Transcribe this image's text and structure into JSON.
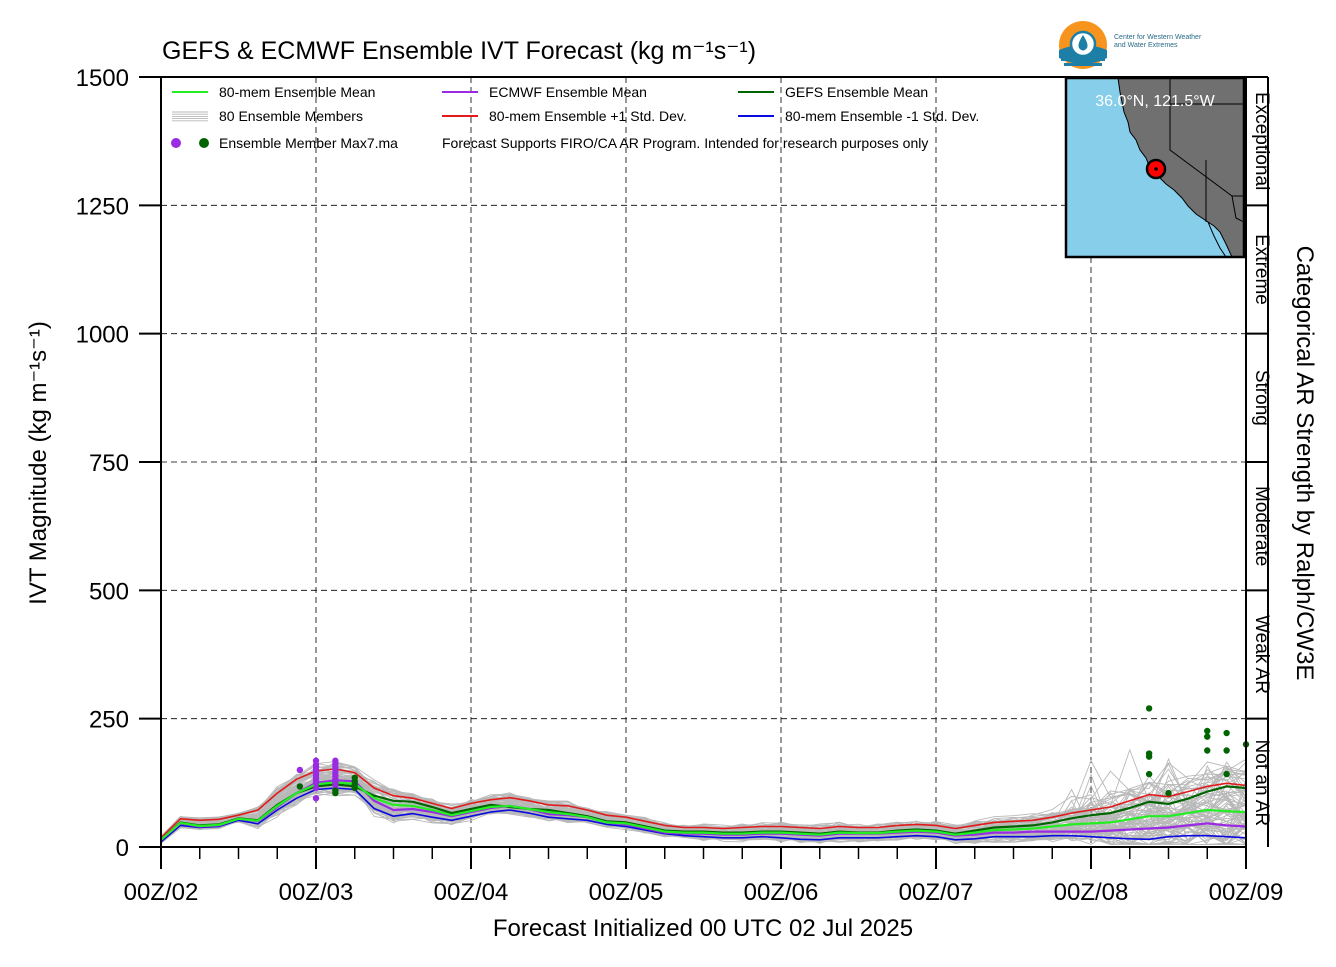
{
  "logo": {
    "line1": "Center for Western Weather",
    "line2": "and Water Extremes"
  },
  "colors": {
    "ensemble_mean": "#22ee22",
    "ecmwf_mean": "#9a2be2",
    "gefs_mean": "#006400",
    "plus_std": "#e11b1b",
    "minus_std": "#0a0ae0",
    "members": "#b8b8b8",
    "map_ocean": "#87ceeb",
    "map_land": "#707070",
    "marker": "#ff0000"
  },
  "legend": {
    "items": [
      {
        "label": "80-mem Ensemble Mean",
        "color": "#22ee22",
        "type": "line"
      },
      {
        "label": "ECMWF Ensemble Mean",
        "color": "#9a2be2",
        "type": "line"
      },
      {
        "label": "GEFS Ensemble Mean",
        "color": "#006400",
        "type": "line"
      },
      {
        "label": "80 Ensemble Members",
        "color": "#b8b8b8",
        "type": "members"
      },
      {
        "label": "80-mem Ensemble +1 Std. Dev.",
        "color": "#e11b1b",
        "type": "line"
      },
      {
        "label": "80-mem Ensemble -1 Std. Dev.",
        "color": "#0a0ae0",
        "type": "line"
      },
      {
        "label": "Ensemble Member Max7.ma",
        "color": "#9a2be2",
        "type": "dots"
      }
    ],
    "note": "Forecast Supports FIRO/CA AR Program. Intended for research purposes only"
  },
  "inset_map": {
    "location_label": "36.0°N, 121.5°W"
  },
  "chart_data": {
    "type": "line",
    "title": "GEFS & ECMWF Ensemble IVT Forecast (kg m⁻¹s⁻¹)",
    "xlabel": "Forecast Initialized 00 UTC 02 Jul 2025",
    "ylabel": "IVT Magnitude (kg m⁻¹s⁻¹)",
    "right_label": "Categorical AR Strength by Ralph/CW3E",
    "ylim": [
      0,
      1500
    ],
    "xlim": [
      0,
      168
    ],
    "x_unit": "forecast hour",
    "yticks": [
      0,
      250,
      500,
      750,
      1000,
      1250,
      1500
    ],
    "xticks": [
      {
        "x": 0,
        "label": "00Z/02"
      },
      {
        "x": 24,
        "label": "00Z/03"
      },
      {
        "x": 48,
        "label": "00Z/04"
      },
      {
        "x": 72,
        "label": "00Z/05"
      },
      {
        "x": 96,
        "label": "00Z/06"
      },
      {
        "x": 120,
        "label": "00Z/07"
      },
      {
        "x": 144,
        "label": "00Z/08"
      },
      {
        "x": 168,
        "label": "00Z/09"
      }
    ],
    "minor_tick_step": 6,
    "grid": true,
    "categories": [
      {
        "label": "Not an AR",
        "range": [
          0,
          250
        ]
      },
      {
        "label": "Weak AR",
        "range": [
          250,
          500
        ]
      },
      {
        "label": "Moderate",
        "range": [
          500,
          750
        ]
      },
      {
        "label": "Strong",
        "range": [
          750,
          1000
        ]
      },
      {
        "label": "Extreme",
        "range": [
          1000,
          1250
        ]
      },
      {
        "label": "Exceptional",
        "range": [
          1250,
          1500
        ]
      }
    ],
    "x": [
      0,
      3,
      6,
      9,
      12,
      15,
      18,
      21,
      24,
      27,
      30,
      33,
      36,
      39,
      42,
      45,
      48,
      51,
      54,
      57,
      60,
      63,
      66,
      69,
      72,
      75,
      78,
      81,
      84,
      87,
      90,
      93,
      96,
      99,
      102,
      105,
      108,
      111,
      114,
      117,
      120,
      123,
      126,
      129,
      132,
      135,
      138,
      141,
      144,
      147,
      150,
      153,
      156,
      159,
      162,
      165,
      168
    ],
    "series": [
      {
        "name": "80-mem Ensemble +1 Std. Dev.",
        "color": "#e11b1b",
        "width": 1.6,
        "values": [
          18,
          55,
          52,
          54,
          62,
          72,
          105,
          132,
          148,
          152,
          145,
          115,
          100,
          95,
          85,
          75,
          85,
          92,
          96,
          90,
          82,
          80,
          72,
          62,
          58,
          50,
          42,
          38,
          38,
          36,
          38,
          40,
          40,
          38,
          36,
          40,
          38,
          38,
          42,
          44,
          42,
          36,
          42,
          48,
          50,
          52,
          58,
          66,
          72,
          78,
          90,
          102,
          98,
          108,
          118,
          124,
          120
        ]
      },
      {
        "name": "80-mem Ensemble -1 Std. Dev.",
        "color": "#0a0ae0",
        "width": 1.6,
        "values": [
          10,
          42,
          38,
          40,
          52,
          45,
          72,
          95,
          112,
          115,
          112,
          75,
          60,
          65,
          58,
          52,
          60,
          68,
          72,
          66,
          58,
          55,
          52,
          44,
          40,
          33,
          26,
          22,
          20,
          18,
          18,
          20,
          18,
          15,
          14,
          18,
          18,
          18,
          20,
          22,
          20,
          14,
          16,
          20,
          20,
          20,
          22,
          22,
          20,
          18,
          16,
          15,
          20,
          22,
          22,
          20,
          18
        ]
      },
      {
        "name": "GEFS Ensemble Mean",
        "color": "#006400",
        "width": 2.2,
        "values": [
          14,
          48,
          42,
          44,
          56,
          52,
          82,
          105,
          118,
          122,
          118,
          100,
          90,
          88,
          78,
          66,
          74,
          82,
          78,
          74,
          72,
          66,
          60,
          50,
          48,
          40,
          32,
          30,
          30,
          28,
          28,
          30,
          30,
          28,
          26,
          30,
          28,
          28,
          32,
          34,
          32,
          26,
          32,
          38,
          40,
          42,
          48,
          56,
          62,
          66,
          76,
          88,
          84,
          94,
          108,
          118,
          115
        ]
      },
      {
        "name": "ECMWF Ensemble Mean",
        "color": "#9a2be2",
        "width": 2.2,
        "values": [
          14,
          46,
          40,
          42,
          55,
          50,
          78,
          105,
          125,
          130,
          128,
          90,
          72,
          74,
          68,
          60,
          68,
          76,
          80,
          74,
          64,
          62,
          58,
          48,
          44,
          36,
          28,
          26,
          26,
          24,
          24,
          26,
          26,
          24,
          22,
          26,
          26,
          26,
          28,
          30,
          28,
          22,
          24,
          28,
          28,
          30,
          30,
          30,
          30,
          32,
          34,
          36,
          38,
          42,
          46,
          42,
          40
        ]
      },
      {
        "name": "80-mem Ensemble Mean",
        "color": "#22ee22",
        "width": 2.2,
        "values": [
          14,
          47,
          41,
          43,
          55,
          51,
          80,
          105,
          122,
          126,
          123,
          95,
          82,
          80,
          72,
          62,
          70,
          78,
          80,
          74,
          68,
          64,
          58,
          48,
          46,
          38,
          30,
          28,
          28,
          26,
          26,
          28,
          28,
          26,
          24,
          28,
          27,
          27,
          30,
          32,
          30,
          24,
          28,
          33,
          34,
          36,
          40,
          44,
          46,
          48,
          54,
          60,
          60,
          66,
          72,
          70,
          68
        ]
      }
    ],
    "max_points_ecmwf": [
      {
        "x": 21.5,
        "y": 150
      },
      {
        "x": 24,
        "y": 168
      },
      {
        "x": 24,
        "y": 160
      },
      {
        "x": 24,
        "y": 155
      },
      {
        "x": 24,
        "y": 150
      },
      {
        "x": 24,
        "y": 145
      },
      {
        "x": 24,
        "y": 140
      },
      {
        "x": 24,
        "y": 135
      },
      {
        "x": 24,
        "y": 130
      },
      {
        "x": 24,
        "y": 125
      },
      {
        "x": 24,
        "y": 115
      },
      {
        "x": 24,
        "y": 95
      },
      {
        "x": 27,
        "y": 168
      },
      {
        "x": 27,
        "y": 162
      },
      {
        "x": 27,
        "y": 156
      },
      {
        "x": 27,
        "y": 150
      },
      {
        "x": 27,
        "y": 144
      },
      {
        "x": 27,
        "y": 138
      },
      {
        "x": 27,
        "y": 132
      },
      {
        "x": 27,
        "y": 126
      },
      {
        "x": 27,
        "y": 120
      },
      {
        "x": 27,
        "y": 114
      }
    ],
    "max_points_gefs": [
      {
        "x": 21.5,
        "y": 118
      },
      {
        "x": 27,
        "y": 110
      },
      {
        "x": 27,
        "y": 105
      },
      {
        "x": 30,
        "y": 135
      },
      {
        "x": 30,
        "y": 128
      },
      {
        "x": 30,
        "y": 122
      },
      {
        "x": 30,
        "y": 115
      },
      {
        "x": 153,
        "y": 270
      },
      {
        "x": 153,
        "y": 182
      },
      {
        "x": 153,
        "y": 176
      },
      {
        "x": 153,
        "y": 142
      },
      {
        "x": 156,
        "y": 105
      },
      {
        "x": 162,
        "y": 226
      },
      {
        "x": 162,
        "y": 215
      },
      {
        "x": 162,
        "y": 188
      },
      {
        "x": 165,
        "y": 222
      },
      {
        "x": 165,
        "y": 188
      },
      {
        "x": 165,
        "y": 142
      },
      {
        "x": 168,
        "y": 200
      }
    ]
  }
}
